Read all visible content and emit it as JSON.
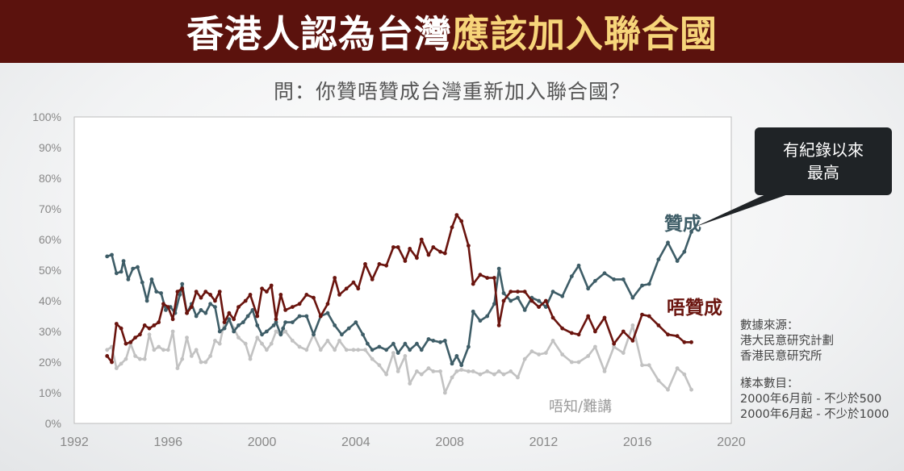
{
  "banner": {
    "title_white": "香港人認為台灣",
    "title_yellow": "應該加入聯合國"
  },
  "question": "問：你贊唔贊成台灣重新加入聯合國？",
  "callout": {
    "line1": "有紀錄以來",
    "line2": "最高"
  },
  "labels": {
    "support": "贊成",
    "oppose": "唔贊成",
    "dont_know": "唔知/難講"
  },
  "source": {
    "title": "數據來源：",
    "line1": "港大民意研究計劃",
    "line2": "香港民意研究所"
  },
  "sample": {
    "title": "樣本數目：",
    "line1": "2000年6月前 - 不少於500",
    "line2": "2000年6月起 - 不少於1000"
  },
  "colors": {
    "support": "#3e5d67",
    "oppose": "#6a140e",
    "dont_know": "#c2c2c2",
    "banner_bg": "#5b120d",
    "banner_highlight": "#f7d57a"
  },
  "chart_data": {
    "type": "line",
    "xlim": [
      1992,
      2020
    ],
    "ylim": [
      0,
      100
    ],
    "x_ticks": [
      "1992",
      "1996",
      "2000",
      "2004",
      "2008",
      "2012",
      "2016",
      "2020"
    ],
    "y_ticks": [
      "0%",
      "10%",
      "20%",
      "30%",
      "40%",
      "50%",
      "60%",
      "70%",
      "80%",
      "90%",
      "100%"
    ],
    "grid": false,
    "series": [
      {
        "name": "贊成",
        "color": "#3e5d67",
        "points": [
          [
            1993.4,
            54.5
          ],
          [
            1993.6,
            55
          ],
          [
            1993.8,
            49
          ],
          [
            1994.0,
            49.5
          ],
          [
            1994.1,
            53
          ],
          [
            1994.3,
            47
          ],
          [
            1994.5,
            50.5
          ],
          [
            1994.7,
            51
          ],
          [
            1994.9,
            46
          ],
          [
            1995.1,
            40
          ],
          [
            1995.3,
            47
          ],
          [
            1995.5,
            43
          ],
          [
            1995.7,
            42.5
          ],
          [
            1995.9,
            37
          ],
          [
            1996.1,
            38
          ],
          [
            1996.3,
            36
          ],
          [
            1996.5,
            42
          ],
          [
            1996.6,
            45.5
          ],
          [
            1996.8,
            36
          ],
          [
            1997.0,
            39
          ],
          [
            1997.2,
            35
          ],
          [
            1997.4,
            37
          ],
          [
            1997.6,
            36
          ],
          [
            1997.8,
            39
          ],
          [
            1998.0,
            38
          ],
          [
            1998.2,
            30
          ],
          [
            1998.4,
            31
          ],
          [
            1998.6,
            34
          ],
          [
            1998.8,
            30
          ],
          [
            1999.0,
            32
          ],
          [
            1999.2,
            33
          ],
          [
            1999.4,
            35
          ],
          [
            1999.6,
            37
          ],
          [
            1999.8,
            32
          ],
          [
            2000.0,
            29
          ],
          [
            2000.2,
            30
          ],
          [
            2000.5,
            32
          ],
          [
            2000.6,
            33
          ],
          [
            2000.8,
            29
          ],
          [
            2000.9,
            31
          ],
          [
            2001.0,
            33
          ],
          [
            2001.3,
            33
          ],
          [
            2001.6,
            35
          ],
          [
            2001.9,
            35
          ],
          [
            2002.2,
            29
          ],
          [
            2002.5,
            35
          ],
          [
            2002.8,
            36
          ],
          [
            2003.1,
            32
          ],
          [
            2003.4,
            29
          ],
          [
            2003.7,
            31
          ],
          [
            2004.0,
            33
          ],
          [
            2004.3,
            29
          ],
          [
            2004.5,
            26
          ],
          [
            2004.7,
            24
          ],
          [
            2005.0,
            25
          ],
          [
            2005.3,
            24
          ],
          [
            2005.6,
            26
          ],
          [
            2005.8,
            23
          ],
          [
            2006.1,
            26
          ],
          [
            2006.3,
            24
          ],
          [
            2006.6,
            26
          ],
          [
            2006.8,
            24
          ],
          [
            2007.1,
            27.5
          ],
          [
            2007.3,
            27
          ],
          [
            2007.6,
            26.5
          ],
          [
            2007.8,
            27
          ],
          [
            2008.1,
            19.5
          ],
          [
            2008.3,
            22
          ],
          [
            2008.5,
            19
          ],
          [
            2008.8,
            25
          ],
          [
            2009.0,
            36.5
          ],
          [
            2009.3,
            33.5
          ],
          [
            2009.6,
            35
          ],
          [
            2009.9,
            39
          ],
          [
            2010.1,
            50.5
          ],
          [
            2010.3,
            42.5
          ],
          [
            2010.6,
            40
          ],
          [
            2010.9,
            41
          ],
          [
            2011.2,
            37
          ],
          [
            2011.5,
            41
          ],
          [
            2011.8,
            40
          ],
          [
            2012.1,
            38
          ],
          [
            2012.4,
            43
          ],
          [
            2012.8,
            41.5
          ],
          [
            2013.2,
            48
          ],
          [
            2013.5,
            51.5
          ],
          [
            2013.9,
            44
          ],
          [
            2014.2,
            46.5
          ],
          [
            2014.6,
            49
          ],
          [
            2015.0,
            47
          ],
          [
            2015.4,
            47
          ],
          [
            2015.8,
            41
          ],
          [
            2016.2,
            45
          ],
          [
            2016.5,
            45.5
          ],
          [
            2016.9,
            53.5
          ],
          [
            2017.3,
            59
          ],
          [
            2017.7,
            53
          ],
          [
            2018.0,
            56
          ],
          [
            2018.3,
            62.5
          ]
        ]
      },
      {
        "name": "唔贊成",
        "color": "#6a140e",
        "points": [
          [
            1993.4,
            22
          ],
          [
            1993.6,
            20
          ],
          [
            1993.8,
            32.5
          ],
          [
            1994.0,
            31
          ],
          [
            1994.2,
            26
          ],
          [
            1994.4,
            26.5
          ],
          [
            1994.6,
            28
          ],
          [
            1994.8,
            29
          ],
          [
            1995.0,
            32
          ],
          [
            1995.2,
            31
          ],
          [
            1995.4,
            32
          ],
          [
            1995.6,
            33
          ],
          [
            1995.8,
            39
          ],
          [
            1996.0,
            38
          ],
          [
            1996.2,
            34
          ],
          [
            1996.4,
            43
          ],
          [
            1996.6,
            44
          ],
          [
            1996.8,
            36
          ],
          [
            1997.0,
            38
          ],
          [
            1997.2,
            43
          ],
          [
            1997.4,
            41
          ],
          [
            1997.6,
            43
          ],
          [
            1997.8,
            42
          ],
          [
            1998.0,
            40
          ],
          [
            1998.2,
            43
          ],
          [
            1998.4,
            33
          ],
          [
            1998.6,
            36
          ],
          [
            1998.8,
            34
          ],
          [
            1999.0,
            38
          ],
          [
            1999.3,
            40
          ],
          [
            1999.5,
            42
          ],
          [
            1999.8,
            35
          ],
          [
            2000.0,
            44
          ],
          [
            2000.2,
            43
          ],
          [
            2000.4,
            45
          ],
          [
            2000.6,
            34
          ],
          [
            2000.8,
            42
          ],
          [
            2001.0,
            37
          ],
          [
            2001.3,
            38
          ],
          [
            2001.6,
            39
          ],
          [
            2001.9,
            42
          ],
          [
            2002.2,
            41
          ],
          [
            2002.5,
            35
          ],
          [
            2002.8,
            39
          ],
          [
            2003.1,
            47.5
          ],
          [
            2003.3,
            42
          ],
          [
            2003.6,
            44
          ],
          [
            2003.9,
            46
          ],
          [
            2004.1,
            44
          ],
          [
            2004.4,
            52
          ],
          [
            2004.7,
            47
          ],
          [
            2005.0,
            52
          ],
          [
            2005.3,
            51.5
          ],
          [
            2005.6,
            57.5
          ],
          [
            2005.8,
            57.5
          ],
          [
            2006.1,
            53
          ],
          [
            2006.3,
            57
          ],
          [
            2006.6,
            54
          ],
          [
            2006.8,
            60
          ],
          [
            2007.1,
            55
          ],
          [
            2007.3,
            57.5
          ],
          [
            2007.6,
            56
          ],
          [
            2007.8,
            55.5
          ],
          [
            2008.1,
            64
          ],
          [
            2008.3,
            68
          ],
          [
            2008.5,
            66
          ],
          [
            2008.8,
            58
          ],
          [
            2009.0,
            45.5
          ],
          [
            2009.3,
            48.5
          ],
          [
            2009.6,
            47.5
          ],
          [
            2009.9,
            47.5
          ],
          [
            2010.1,
            32
          ],
          [
            2010.3,
            40
          ],
          [
            2010.6,
            43
          ],
          [
            2010.9,
            43
          ],
          [
            2011.2,
            43
          ],
          [
            2011.5,
            40
          ],
          [
            2011.8,
            38
          ],
          [
            2012.1,
            40
          ],
          [
            2012.4,
            34.5
          ],
          [
            2012.8,
            31
          ],
          [
            2013.2,
            29.5
          ],
          [
            2013.5,
            29
          ],
          [
            2013.9,
            35
          ],
          [
            2014.2,
            30
          ],
          [
            2014.6,
            34.5
          ],
          [
            2015.0,
            26
          ],
          [
            2015.4,
            30
          ],
          [
            2015.8,
            27
          ],
          [
            2016.2,
            35.5
          ],
          [
            2016.5,
            35
          ],
          [
            2016.9,
            32
          ],
          [
            2017.3,
            29
          ],
          [
            2017.7,
            28.5
          ],
          [
            2018.0,
            26.5
          ],
          [
            2018.3,
            26.5
          ]
        ]
      },
      {
        "name": "唔知/難講",
        "color": "#c2c2c2",
        "points": [
          [
            1993.4,
            24
          ],
          [
            1993.6,
            25
          ],
          [
            1993.8,
            18
          ],
          [
            1994.0,
            19.5
          ],
          [
            1994.2,
            21
          ],
          [
            1994.4,
            26
          ],
          [
            1994.6,
            22
          ],
          [
            1994.8,
            21
          ],
          [
            1995.0,
            21
          ],
          [
            1995.2,
            29
          ],
          [
            1995.4,
            24
          ],
          [
            1995.6,
            25
          ],
          [
            1995.8,
            24
          ],
          [
            1996.0,
            24
          ],
          [
            1996.2,
            30
          ],
          [
            1996.4,
            18
          ],
          [
            1996.6,
            21
          ],
          [
            1996.8,
            28
          ],
          [
            1997.0,
            22
          ],
          [
            1997.2,
            24
          ],
          [
            1997.4,
            20
          ],
          [
            1997.6,
            20
          ],
          [
            1997.8,
            22
          ],
          [
            1998.0,
            27
          ],
          [
            1998.2,
            26
          ],
          [
            1998.4,
            33
          ],
          [
            1998.6,
            34
          ],
          [
            1998.8,
            31
          ],
          [
            1999.0,
            28
          ],
          [
            1999.3,
            26
          ],
          [
            1999.5,
            21
          ],
          [
            1999.8,
            28
          ],
          [
            2000.0,
            26
          ],
          [
            2000.2,
            24
          ],
          [
            2000.4,
            26
          ],
          [
            2000.6,
            30
          ],
          [
            2000.8,
            29
          ],
          [
            2001.0,
            30
          ],
          [
            2001.3,
            27
          ],
          [
            2001.6,
            25
          ],
          [
            2001.9,
            24
          ],
          [
            2002.2,
            29
          ],
          [
            2002.5,
            24
          ],
          [
            2002.8,
            27
          ],
          [
            2003.1,
            24
          ],
          [
            2003.3,
            27
          ],
          [
            2003.6,
            24
          ],
          [
            2003.9,
            24
          ],
          [
            2004.1,
            24
          ],
          [
            2004.4,
            24
          ],
          [
            2004.7,
            21
          ],
          [
            2005.0,
            19
          ],
          [
            2005.3,
            16
          ],
          [
            2005.6,
            23
          ],
          [
            2005.8,
            17
          ],
          [
            2006.1,
            22
          ],
          [
            2006.3,
            13
          ],
          [
            2006.6,
            17
          ],
          [
            2006.8,
            16
          ],
          [
            2007.1,
            18
          ],
          [
            2007.3,
            17
          ],
          [
            2007.6,
            17
          ],
          [
            2007.8,
            10
          ],
          [
            2008.1,
            15
          ],
          [
            2008.3,
            17
          ],
          [
            2008.5,
            17.5
          ],
          [
            2008.8,
            17
          ],
          [
            2009.0,
            17
          ],
          [
            2009.3,
            16
          ],
          [
            2009.6,
            17
          ],
          [
            2009.9,
            16
          ],
          [
            2010.1,
            17
          ],
          [
            2010.3,
            16
          ],
          [
            2010.6,
            17
          ],
          [
            2010.9,
            15
          ],
          [
            2011.2,
            21
          ],
          [
            2011.5,
            23.5
          ],
          [
            2011.8,
            22.5
          ],
          [
            2012.1,
            23
          ],
          [
            2012.4,
            27
          ],
          [
            2012.8,
            22.5
          ],
          [
            2013.2,
            20
          ],
          [
            2013.5,
            20
          ],
          [
            2013.9,
            22
          ],
          [
            2014.2,
            25
          ],
          [
            2014.6,
            17
          ],
          [
            2015.0,
            25
          ],
          [
            2015.4,
            23
          ],
          [
            2015.8,
            32
          ],
          [
            2016.2,
            19
          ],
          [
            2016.5,
            19
          ],
          [
            2016.9,
            14
          ],
          [
            2017.3,
            11
          ],
          [
            2017.7,
            18
          ],
          [
            2018.0,
            16
          ],
          [
            2018.3,
            11
          ]
        ]
      }
    ]
  }
}
